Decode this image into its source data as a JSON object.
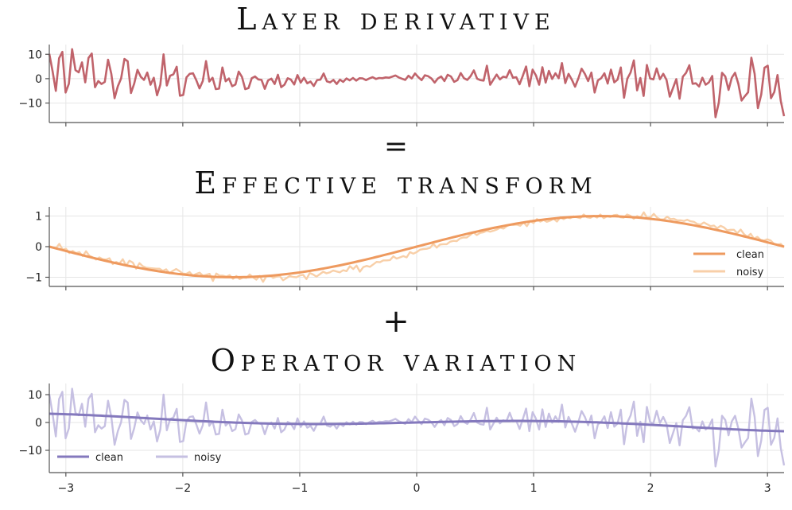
{
  "titles": {
    "panel1": "Layer derivative",
    "panel2": "Effective transform",
    "panel3": "Operator variation"
  },
  "operators": {
    "equals": "=",
    "plus": "+"
  },
  "colors": {
    "derivative": "#c0636b",
    "transform_clean": "#ee9a5f",
    "transform_noisy": "#f8cfa8",
    "variation_clean": "#8479bd",
    "variation_noisy": "#c6c0e2"
  },
  "chart_data": [
    {
      "type": "line",
      "x_range": [
        -3.14159,
        3.14159
      ],
      "xlim": [
        -3.14159,
        3.14159
      ],
      "ylim": [
        -18,
        14
      ],
      "yticks": [
        -10,
        0,
        10
      ],
      "ytick_labels": [
        "−10",
        "0",
        "10"
      ],
      "grid": true,
      "series": [
        {
          "color": "#c0636b",
          "values": [
            10.2,
            3.1,
            -5.0,
            8.4,
            11.0,
            -5.7,
            -2.1,
            12.1,
            3.5,
            2.6,
            6.7,
            -1.5,
            8.5,
            10.3,
            -3.5,
            -1.0,
            -2.2,
            -1.3,
            7.8,
            2.0,
            -8.0,
            -3.1,
            0.1,
            8.1,
            7.1,
            -5.9,
            -2.0,
            3.6,
            0.8,
            -0.5,
            2.5,
            -2.5,
            0.4,
            -6.8,
            -2.5,
            10.0,
            -2.8,
            1.2,
            1.8,
            4.9,
            -7.0,
            -6.7,
            0.5,
            2.0,
            2.2,
            -0.6,
            -4.0,
            -1.0,
            7.2,
            -1.2,
            0.4,
            -4.3,
            -4.1,
            4.6,
            -1.1,
            0.1,
            -3.1,
            -2.4,
            2.9,
            0.7,
            -4.3,
            -3.9,
            0.2,
            0.9,
            -0.3,
            -0.5,
            -4.2,
            -0.7,
            0.0,
            -2.2,
            1.6,
            -3.5,
            -2.5,
            0.2,
            -0.4,
            -2.4,
            1.5,
            -1.6,
            0.4,
            -1.9,
            -1.2,
            -3.0,
            -0.6,
            -0.4,
            2.1,
            -1.1,
            -1.5,
            -0.5,
            -2.2,
            -0.4,
            -1.3,
            0.1,
            -0.7,
            0.3,
            -0.8,
            0.2,
            0.1,
            -0.6,
            0.1,
            0.6,
            -0.1,
            0.3,
            0.2,
            0.5,
            0.4,
            0.8,
            1.3,
            0.5,
            0.0,
            -0.5,
            1.2,
            0.1,
            2.1,
            0.6,
            -0.6,
            1.4,
            1.0,
            0.1,
            -1.6,
            0.1,
            0.9,
            -1.0,
            1.6,
            0.9,
            -1.3,
            -0.6,
            2.3,
            0.2,
            -0.5,
            1.0,
            3.4,
            0.0,
            -0.6,
            -0.8,
            5.3,
            -2.5,
            -0.4,
            1.7,
            -0.3,
            0.8,
            0.5,
            3.5,
            0.4,
            0.6,
            -2.3,
            1.2,
            5.0,
            -3.1,
            3.7,
            1.4,
            -2.5,
            4.7,
            -1.6,
            3.2,
            -0.1,
            2.2,
            0.2,
            6.4,
            -1.8,
            2.0,
            -0.4,
            -3.3,
            0.1,
            4.1,
            2.0,
            -1.0,
            2.5,
            -5.7,
            -0.7,
            0.2,
            2.2,
            -2.0,
            3.7,
            -1.5,
            -0.4,
            4.6,
            -7.8,
            0.0,
            2.5,
            7.5,
            -4.8,
            0.3,
            -7.1,
            5.6,
            0.1,
            -0.3,
            4.2,
            -0.2,
            2.0,
            -0.5,
            -7.4,
            -3.8,
            -0.2,
            -8.2,
            0.8,
            2.4,
            5.5,
            -2.1,
            -1.9,
            -3.2,
            0.4,
            -2.5,
            -1.5,
            1.1,
            -15.8,
            -9.9,
            2.4,
            0.9,
            -4.6,
            0.4,
            2.4,
            -2.1,
            -9.0,
            -7.2,
            -5.6,
            8.6,
            2.0,
            -12.1,
            -6.5,
            4.5,
            5.3,
            -8.0,
            -5.5,
            1.5,
            -9.2,
            -15.4
          ]
        }
      ]
    },
    {
      "type": "line",
      "x_range": [
        -3.14159,
        3.14159
      ],
      "xlim": [
        -3.14159,
        3.14159
      ],
      "ylim": [
        -1.3,
        1.3
      ],
      "yticks": [
        -1,
        0,
        1
      ],
      "ytick_labels": [
        "−1",
        "0",
        "1"
      ],
      "grid": true,
      "legend_position": "bottom-right",
      "series": [
        {
          "name": "clean",
          "color": "#ee9a5f",
          "function": "sin"
        },
        {
          "name": "noisy",
          "color": "#f8cfa8",
          "values": [
            0.0,
            -0.02,
            -0.05,
            0.09,
            -0.1,
            -0.07,
            -0.21,
            -0.14,
            -0.21,
            -0.18,
            -0.31,
            -0.15,
            -0.3,
            -0.35,
            -0.42,
            -0.35,
            -0.41,
            -0.42,
            -0.38,
            -0.57,
            -0.5,
            -0.55,
            -0.41,
            -0.62,
            -0.46,
            -0.52,
            -0.72,
            -0.54,
            -0.64,
            -0.69,
            -0.7,
            -0.71,
            -0.72,
            -0.72,
            -0.79,
            -0.74,
            -0.87,
            -0.79,
            -0.73,
            -0.8,
            -0.88,
            -0.89,
            -0.83,
            -0.95,
            -0.89,
            -0.85,
            -0.95,
            -0.92,
            -0.89,
            -1.12,
            -0.88,
            -0.95,
            -0.95,
            -0.98,
            -0.93,
            -1.05,
            -0.96,
            -1.06,
            -1.01,
            -1.02,
            -0.91,
            -1.0,
            -1.08,
            -0.96,
            -1.15,
            -0.97,
            -0.94,
            -1.02,
            -0.98,
            -0.96,
            -1.1,
            -1.03,
            -0.96,
            -0.99,
            -1.0,
            -0.94,
            -0.92,
            -1.06,
            -0.86,
            -0.91,
            -0.98,
            -0.9,
            -0.82,
            -0.87,
            -0.84,
            -0.78,
            -0.81,
            -0.84,
            -0.77,
            -0.8,
            -0.64,
            -0.73,
            -0.62,
            -0.82,
            -0.67,
            -0.63,
            -0.66,
            -0.58,
            -0.5,
            -0.51,
            -0.45,
            -0.45,
            -0.44,
            -0.32,
            -0.39,
            -0.35,
            -0.31,
            -0.35,
            -0.18,
            -0.23,
            -0.18,
            -0.1,
            -0.08,
            -0.07,
            -0.04,
            0.09,
            -0.03,
            0.07,
            0.08,
            0.08,
            0.16,
            0.19,
            0.18,
            0.27,
            0.3,
            0.3,
            0.38,
            0.47,
            0.38,
            0.45,
            0.47,
            0.52,
            0.49,
            0.52,
            0.56,
            0.62,
            0.59,
            0.67,
            0.72,
            0.71,
            0.72,
            0.68,
            0.79,
            0.67,
            0.84,
            0.77,
            0.9,
            0.82,
            0.87,
            0.81,
            0.85,
            0.91,
            0.82,
            0.96,
            0.9,
            0.96,
            0.93,
            0.99,
            0.96,
            0.93,
            1.05,
            0.96,
            0.94,
            1.01,
            0.95,
            1.05,
            0.93,
            0.99,
            0.97,
            1.03,
            1.04,
            0.96,
            0.95,
            1.05,
            1.01,
            0.91,
            1.0,
            0.95,
            1.12,
            0.94,
            0.96,
            1.07,
            0.95,
            0.89,
            0.89,
            0.98,
            0.9,
            0.91,
            0.86,
            0.86,
            0.84,
            0.88,
            0.83,
            0.81,
            0.74,
            0.72,
            0.79,
            0.73,
            0.67,
            0.69,
            0.6,
            0.68,
            0.63,
            0.53,
            0.55,
            0.55,
            0.44,
            0.56,
            0.41,
            0.32,
            0.42,
            0.26,
            0.32,
            0.22,
            0.2,
            0.24,
            0.2,
            0.09,
            0.06,
            0.09,
            -0.02
          ]
        }
      ]
    },
    {
      "type": "line",
      "x_range": [
        -3.14159,
        3.14159
      ],
      "xlim": [
        -3.14159,
        3.14159
      ],
      "ylim": [
        -18,
        14
      ],
      "yticks": [
        -10,
        0,
        10
      ],
      "ytick_labels": [
        "−10",
        "0",
        "10"
      ],
      "xticks": [
        -3,
        -2,
        -1,
        0,
        1,
        2,
        3
      ],
      "xtick_labels": [
        "−3",
        "−2",
        "−1",
        "0",
        "1",
        "2",
        "3"
      ],
      "grid": true,
      "legend_position": "bottom-left",
      "series": [
        {
          "name": "clean",
          "color": "#8479bd",
          "function": "x*cos(x)"
        },
        {
          "name": "noisy",
          "color": "#c6c0e2",
          "values": [
            10.2,
            3.1,
            -5.0,
            8.4,
            11.0,
            -5.7,
            -2.1,
            12.1,
            3.5,
            2.6,
            6.7,
            -1.5,
            8.5,
            10.3,
            -3.5,
            -1.0,
            -2.2,
            -1.3,
            7.8,
            2.0,
            -8.0,
            -3.1,
            0.1,
            8.1,
            7.1,
            -5.9,
            -2.0,
            3.6,
            0.8,
            -0.5,
            2.5,
            -2.5,
            0.4,
            -6.8,
            -2.5,
            10.0,
            -2.8,
            1.2,
            1.8,
            4.9,
            -7.0,
            -6.7,
            0.5,
            2.0,
            2.2,
            -0.6,
            -4.0,
            -1.0,
            7.2,
            -1.2,
            0.4,
            -4.3,
            -4.1,
            4.6,
            -1.1,
            0.1,
            -3.1,
            -2.4,
            2.9,
            0.7,
            -4.3,
            -3.9,
            0.2,
            0.9,
            -0.3,
            -0.5,
            -4.2,
            -0.7,
            0.0,
            -2.2,
            1.6,
            -3.5,
            -2.5,
            0.2,
            -0.4,
            -2.4,
            1.5,
            -1.6,
            0.4,
            -1.9,
            -1.2,
            -3.0,
            -0.6,
            -0.4,
            2.1,
            -1.1,
            -1.5,
            -0.5,
            -2.2,
            -0.4,
            -1.3,
            0.1,
            -0.7,
            0.3,
            -0.8,
            0.2,
            0.1,
            -0.6,
            0.1,
            0.6,
            -0.1,
            0.3,
            0.2,
            0.5,
            0.4,
            0.8,
            1.3,
            0.5,
            0.0,
            -0.5,
            1.2,
            0.1,
            2.1,
            0.6,
            -0.6,
            1.4,
            1.0,
            0.1,
            -1.6,
            0.1,
            0.9,
            -1.0,
            1.6,
            0.9,
            -1.3,
            -0.6,
            2.3,
            0.2,
            -0.5,
            1.0,
            3.4,
            0.0,
            -0.6,
            -0.8,
            5.3,
            -2.5,
            -0.4,
            1.7,
            -0.3,
            0.8,
            0.5,
            3.5,
            0.4,
            0.6,
            -2.3,
            1.2,
            5.0,
            -3.1,
            3.7,
            1.4,
            -2.5,
            4.7,
            -1.6,
            3.2,
            -0.1,
            2.2,
            0.2,
            6.4,
            -1.8,
            2.0,
            -0.4,
            -3.3,
            0.1,
            4.1,
            2.0,
            -1.0,
            2.5,
            -5.7,
            -0.7,
            0.2,
            2.2,
            -2.0,
            3.7,
            -1.5,
            -0.4,
            4.6,
            -7.8,
            0.0,
            2.5,
            7.5,
            -4.8,
            0.3,
            -7.1,
            5.6,
            0.1,
            -0.3,
            4.2,
            -0.2,
            2.0,
            -0.5,
            -7.4,
            -3.8,
            -0.2,
            -8.2,
            0.8,
            2.4,
            5.5,
            -2.1,
            -1.9,
            -3.2,
            0.4,
            -2.5,
            -1.5,
            1.1,
            -15.8,
            -9.9,
            2.4,
            0.9,
            -4.6,
            0.4,
            2.4,
            -2.1,
            -9.0,
            -7.2,
            -5.6,
            8.6,
            2.0,
            -12.1,
            -6.5,
            4.5,
            5.3,
            -8.0,
            -5.5,
            1.5,
            -9.2,
            -15.4
          ]
        }
      ]
    }
  ]
}
